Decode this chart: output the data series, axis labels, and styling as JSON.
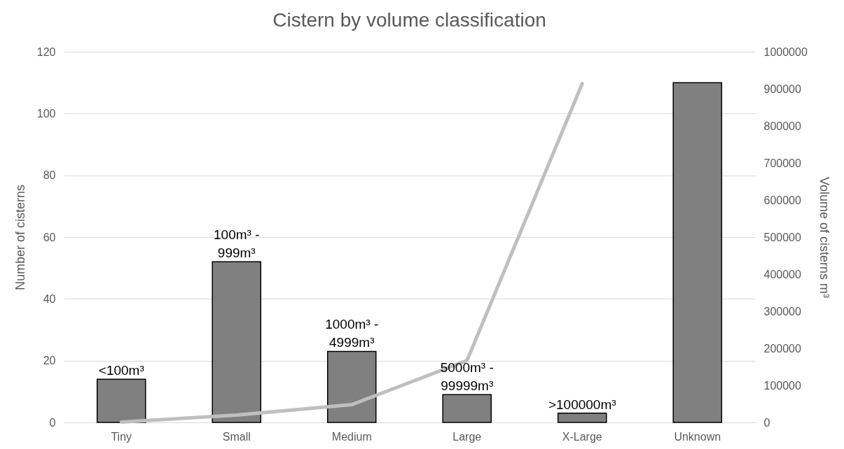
{
  "chart_data": {
    "type": "bar",
    "title": "Cistern by volume classification",
    "ylabel": "Number of cisterns",
    "y2label": "Volume of cisterns m³",
    "categories": [
      "Tiny",
      "Small",
      "Medium",
      "Large",
      "X-Large",
      "Unknown"
    ],
    "series": [
      {
        "color": "#808080",
        "values": [
          14,
          52,
          23,
          9,
          3,
          110
        ]
      },
      {
        "type": "line",
        "axis": "y2",
        "color": "#bfbfbf",
        "values": [
          1000,
          20000,
          48000,
          167000,
          914000,
          null
        ]
      }
    ],
    "ylim": [
      0,
      120
    ],
    "yticks": [
      0,
      20,
      40,
      60,
      80,
      100,
      120
    ],
    "y2lim": [
      0,
      1000000
    ],
    "y2ticks": [
      0,
      100000,
      200000,
      300000,
      400000,
      500000,
      600000,
      700000,
      800000,
      900000,
      1000000
    ],
    "grid": "y",
    "annotations": [
      {
        "text": "<100m³",
        "x": "Tiny",
        "y": 14
      },
      {
        "text": "100m³ - 999m³",
        "x": "Small",
        "y": 52
      },
      {
        "text": "1000m³ - 4999m³",
        "x": "Medium",
        "y": 23
      },
      {
        "text": "5000m³ - 99999m³",
        "x": "Large",
        "y": 9
      },
      {
        "text": ">100000m³",
        "x": "X-Large",
        "y": 3
      }
    ]
  }
}
